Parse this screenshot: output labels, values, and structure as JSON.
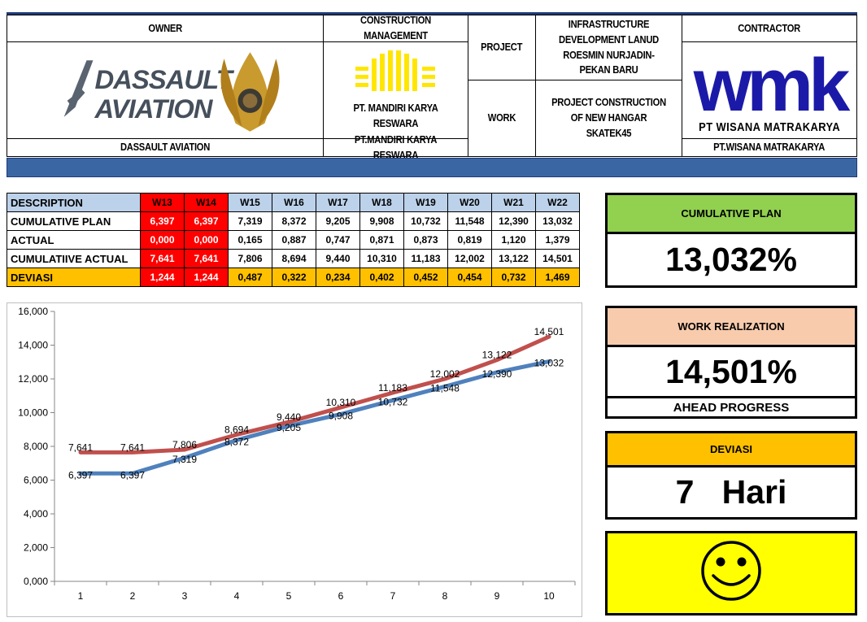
{
  "header": {
    "owner_label": "OWNER",
    "owner_logo_text_1": "DASSAULT",
    "owner_logo_text_2": "AVIATION",
    "owner_name": "DASSAULT AVIATION",
    "cm_label": "CONSTRUCTION MANAGEMENT",
    "cm_logo_caption": "PT. MANDIRI KARYA RESWARA",
    "cm_name": "PT.MANDIRI KARYA RESWARA",
    "project_label": "PROJECT",
    "project_value": "INFRASTRUCTURE DEVELOPMENT LANUD ROESMIN NURJADIN-PEKAN BARU",
    "work_label": "WORK",
    "work_value": "PROJECT CONSTRUCTION OF NEW HANGAR SKATEK45",
    "contractor_label": "CONTRACTOR",
    "contractor_logo_text": "wmk",
    "contractor_logo_caption": "PT WISANA MATRAKARYA",
    "contractor_name": "PT.WISANA MATRAKARYA"
  },
  "table": {
    "columns": [
      "DESCRIPTION",
      "W13",
      "W14",
      "W15",
      "W16",
      "W17",
      "W18",
      "W19",
      "W20",
      "W21",
      "W22"
    ],
    "rows": [
      {
        "label": "CUMULATIVE PLAN",
        "values": [
          "6,397",
          "6,397",
          "7,319",
          "8,372",
          "9,205",
          "9,908",
          "10,732",
          "11,548",
          "12,390",
          "13,032"
        ]
      },
      {
        "label": "ACTUAL",
        "values": [
          "0,000",
          "0,000",
          "0,165",
          "0,887",
          "0,747",
          "0,871",
          "0,873",
          "0,819",
          "1,120",
          "1,379"
        ]
      },
      {
        "label": "CUMULATIIVE ACTUAL",
        "values": [
          "7,641",
          "7,641",
          "7,806",
          "8,694",
          "9,440",
          "10,310",
          "11,183",
          "12,002",
          "13,122",
          "14,501"
        ]
      },
      {
        "label": "DEVIASI",
        "values": [
          "1,244",
          "1,244",
          "0,487",
          "0,322",
          "0,234",
          "0,402",
          "0,452",
          "0,454",
          "0,732",
          "1,469"
        ]
      }
    ]
  },
  "chart_data": {
    "type": "line",
    "x": [
      1,
      2,
      3,
      4,
      5,
      6,
      7,
      8,
      9,
      10
    ],
    "ylim": [
      0,
      16
    ],
    "yticks": [
      "0,000",
      "2,000",
      "4,000",
      "6,000",
      "8,000",
      "10,000",
      "12,000",
      "14,000",
      "16,000"
    ],
    "grid": false,
    "series": [
      {
        "values": [
          6.397,
          6.397,
          7.319,
          8.372,
          9.205,
          9.908,
          10.732,
          11.548,
          12.39,
          13.032
        ],
        "labels": [
          "6,397",
          "6,397",
          "7,319",
          "8,372",
          "9,205",
          "9,908",
          "10,732",
          "11,548",
          "12,390",
          "13,032"
        ],
        "color": "#4f81bd"
      },
      {
        "values": [
          7.641,
          7.641,
          7.806,
          8.694,
          9.44,
          10.31,
          11.183,
          12.002,
          13.122,
          14.501
        ],
        "labels": [
          "7,641",
          "7,641",
          "7,806",
          "8,694",
          "9,440",
          "10,310",
          "11,183",
          "12,002",
          "13,122",
          "14,501"
        ],
        "color": "#c0504d"
      }
    ]
  },
  "kpis": {
    "plan_title": "CUMULATIVE PLAN",
    "plan_value": "13,032%",
    "plan_color": "#92d050",
    "real_title": "WORK REALIZATION",
    "real_value": "14,501%",
    "real_sub": "AHEAD PROGRESS",
    "real_color": "#f8cbad",
    "dev_title": "DEVIASI",
    "dev_value": "7   Hari",
    "dev_color": "#ffc000",
    "status_icon": "smiley-face-icon",
    "status_color": "#ffff00"
  }
}
